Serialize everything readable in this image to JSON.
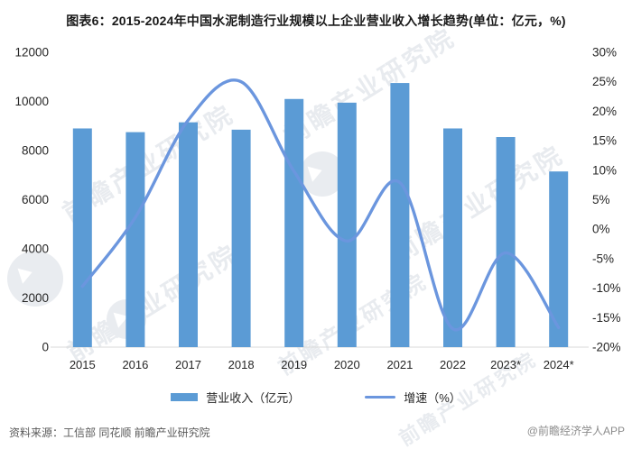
{
  "title": "图表6：2015-2024年中国水泥制造行业规模以上企业营业收入增长趋势(单位：亿元，%)",
  "source": "资料来源：工信部 同花顺 前瞻产业研究院",
  "credit": "@前瞻经济学人APP",
  "watermark": {
    "brand": "前瞻产业研究院"
  },
  "colors": {
    "bar": "#5B9BD5",
    "line": "#6B96DE",
    "axis_text": "#262626",
    "baseline": "#D9D9D9",
    "footer_text": "#595959",
    "credit_text": "#8C8C8C"
  },
  "legend": [
    {
      "label": "营业收入（亿元）",
      "type": "bar"
    },
    {
      "label": "增速（%）",
      "type": "line"
    }
  ],
  "chart_data": {
    "type": "bar",
    "title": "图表6：2015-2024年中国水泥制造行业规模以上企业营业收入增长趋势(单位：亿元，%)",
    "categories": [
      "2015",
      "2016",
      "2017",
      "2018",
      "2019",
      "2020",
      "2021",
      "2022",
      "2023*",
      "2024*"
    ],
    "series": [
      {
        "name": "营业收入（亿元）",
        "kind": "bar",
        "axis": "left",
        "values": [
          8900,
          8750,
          9150,
          8850,
          10100,
          9950,
          10750,
          8900,
          8550,
          7150
        ]
      },
      {
        "name": "增速（%）",
        "kind": "line",
        "axis": "right",
        "values": [
          -9.7,
          2.0,
          18.5,
          25.0,
          9.8,
          -2.0,
          7.9,
          -16.9,
          -4.0,
          -16.7
        ]
      }
    ],
    "left_axis": {
      "min": 0,
      "max": 12000,
      "tick_labels": [
        "0",
        "2000",
        "4000",
        "6000",
        "8000",
        "10000",
        "12000"
      ]
    },
    "right_axis": {
      "min": -20,
      "max": 30,
      "tick_labels": [
        "-20%",
        "-15%",
        "-10%",
        "-5%",
        "0%",
        "5%",
        "10%",
        "15%",
        "20%",
        "25%",
        "30%"
      ]
    },
    "grid": false,
    "legend_position": "bottom"
  }
}
